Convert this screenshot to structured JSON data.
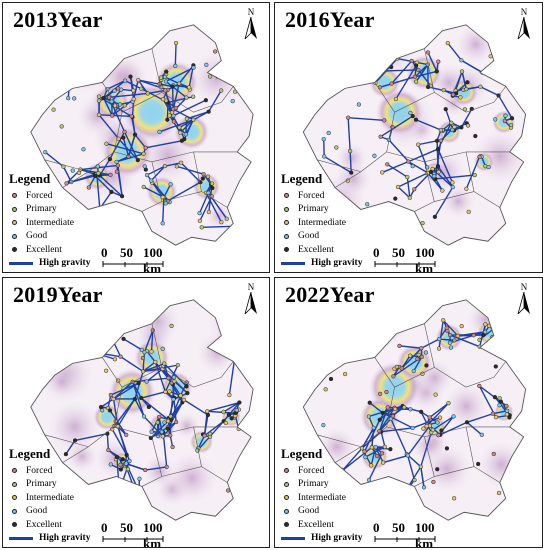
{
  "panels": [
    {
      "id": "p0",
      "title": "2013Year",
      "intensity": 1.0
    },
    {
      "id": "p1",
      "title": "2016Year",
      "intensity": 0.55
    },
    {
      "id": "p2",
      "title": "2019Year",
      "intensity": 0.8
    },
    {
      "id": "p3",
      "title": "2022Year",
      "intensity": 0.7
    }
  ],
  "north_label": "N",
  "legend": {
    "title": "Legend",
    "items": [
      {
        "label": "Forced",
        "color": "#c98a8a"
      },
      {
        "label": "Primary",
        "color": "#b7c87a"
      },
      {
        "label": "Intermediate",
        "color": "#e8c66a"
      },
      {
        "label": "Good",
        "color": "#7ec7e8"
      },
      {
        "label": "Excellent",
        "color": "#2b2b2b"
      }
    ],
    "gravity_label": "High gravity",
    "gravity_color": "#1f3fa8"
  },
  "scale": {
    "labels": [
      "0",
      "50",
      "100 km"
    ]
  },
  "colors": {
    "density_outer": "#eadcea",
    "density_mid": "#c9a9cd",
    "hotspot_ring": "#f2e27a",
    "hotspot_core": "#8fd3ec",
    "boundary": "#555555",
    "link": "#1f3fa8"
  }
}
